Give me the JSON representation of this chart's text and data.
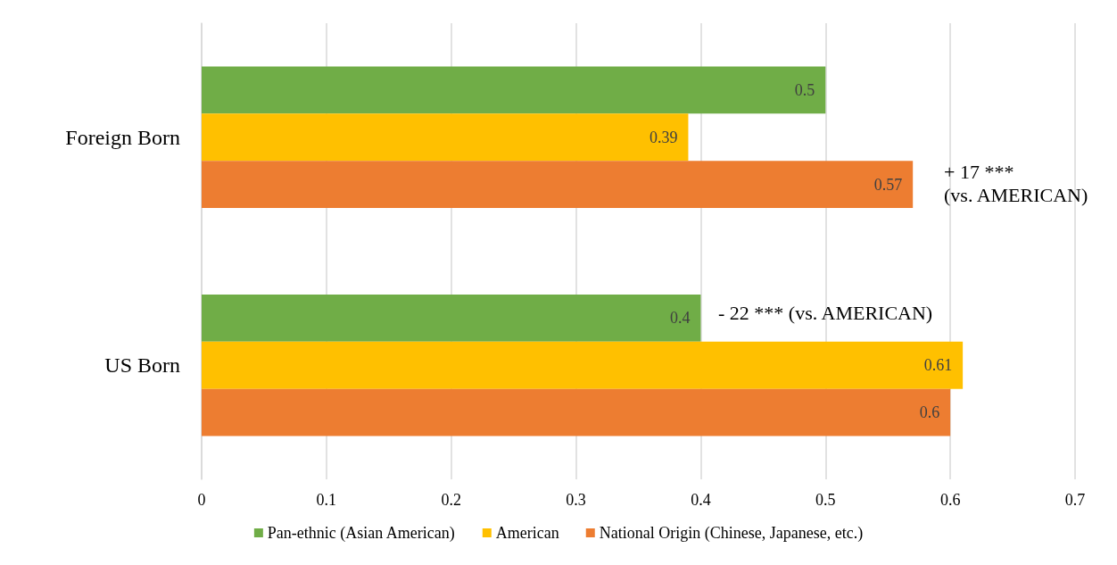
{
  "chart_data": {
    "type": "bar",
    "orientation": "horizontal",
    "categories": [
      "Foreign Born",
      "US Born"
    ],
    "series": [
      {
        "name": "Pan-ethnic (Asian American)",
        "color": "#70ad47",
        "values": [
          0.5,
          0.4
        ]
      },
      {
        "name": "American",
        "color": "#ffc000",
        "values": [
          0.39,
          0.61
        ]
      },
      {
        "name": "National Origin (Chinese, Japanese, etc.)",
        "color": "#ed7d31",
        "values": [
          0.57,
          0.6
        ]
      }
    ],
    "xlim": [
      0,
      0.7
    ],
    "xticks": [
      0,
      0.1,
      0.2,
      0.3,
      0.4,
      0.5,
      0.6,
      0.7
    ],
    "grid": "x",
    "legend": "bottom",
    "data_labels": true,
    "annotations": [
      "+ 17 *** (vs. AMERICAN)",
      "- 22 *** (vs. AMERICAN)"
    ]
  }
}
